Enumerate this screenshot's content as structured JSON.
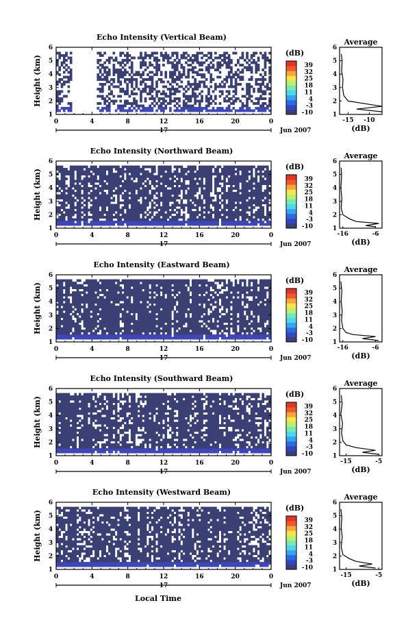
{
  "colors": {
    "background_echo": "#3a3f74",
    "low_echo": "#3e46b8",
    "colorbar": [
      "#3a3f74",
      "#3345c0",
      "#2f6be0",
      "#34a6f0",
      "#4fd6e8",
      "#7ae8b5",
      "#b8f070",
      "#f6e64e",
      "#f7a63b",
      "#ee5a2a",
      "#e0352a"
    ]
  },
  "shared": {
    "xticks": [
      "0",
      "4",
      "8",
      "12",
      "16",
      "20",
      "0"
    ],
    "yticks": [
      "1",
      "2",
      "3",
      "4",
      "5",
      "6"
    ],
    "ylabel": "Height (km)",
    "day_label": "17",
    "date_label": "Jun 2007",
    "x_axis_title": "Local Time",
    "colorbar_unit": "(dB)",
    "colorbar_ticks": [
      "39",
      "32",
      "25",
      "18",
      "11",
      "4",
      "-3",
      "-10"
    ],
    "average_title": "Average",
    "average_xlabel": "(dB)"
  },
  "chart_data": [
    {
      "type": "heatmap",
      "title": "Echo Intensity (Vertical Beam)",
      "xlabel": "Local Time",
      "ylabel": "Height (km)",
      "xlim": [
        0,
        24
      ],
      "ylim": [
        1,
        6
      ],
      "zlim": [
        -10,
        39
      ],
      "coverage": {
        "top_km": 5.5,
        "density": 0.45,
        "blank_hours": [
          [
            1.8,
            4.5
          ]
        ]
      },
      "average_profile": {
        "xticks": [
          "-15",
          "-10"
        ],
        "xlim": [
          -17,
          -7
        ],
        "height_km": [
          1.2,
          1.4,
          1.6,
          1.8,
          2.0,
          2.4,
          3.0,
          3.6,
          4.2,
          5.0,
          5.5
        ],
        "value_db": [
          -7,
          -13,
          -7,
          -11,
          -15,
          -16,
          -16.3,
          -16.2,
          -16.5,
          -16.4,
          -16.6
        ]
      }
    },
    {
      "type": "heatmap",
      "title": "Echo Intensity (Northward Beam)",
      "xlabel": "Local Time",
      "ylabel": "Height (km)",
      "xlim": [
        0,
        24
      ],
      "ylim": [
        1,
        6
      ],
      "zlim": [
        -10,
        39
      ],
      "coverage": {
        "top_km": 5.5,
        "density": 0.78,
        "blank_hours": []
      },
      "average_profile": {
        "xticks": [
          "-16",
          "-6"
        ],
        "xlim": [
          -17,
          -4
        ],
        "height_km": [
          1.1,
          1.2,
          1.35,
          1.5,
          1.7,
          2.0,
          2.5,
          3.2,
          4.0,
          4.8,
          5.5
        ],
        "value_db": [
          -6,
          -9,
          -5,
          -12,
          -14,
          -16,
          -16.5,
          -16.3,
          -16.6,
          -16.4,
          -16.5
        ]
      }
    },
    {
      "type": "heatmap",
      "title": "Echo Intensity (Eastward Beam)",
      "xlabel": "Local Time",
      "ylabel": "Height (km)",
      "xlim": [
        0,
        24
      ],
      "ylim": [
        1,
        6
      ],
      "zlim": [
        -10,
        39
      ],
      "coverage": {
        "top_km": 5.5,
        "density": 0.86,
        "blank_hours": []
      },
      "average_profile": {
        "xticks": [
          "-16",
          "-6"
        ],
        "xlim": [
          -17,
          -4
        ],
        "height_km": [
          1.1,
          1.25,
          1.4,
          1.55,
          1.7,
          2.0,
          2.6,
          3.3,
          4.0,
          4.8,
          5.5
        ],
        "value_db": [
          -5,
          -10,
          -6,
          -13,
          -15,
          -16,
          -16.4,
          -16.2,
          -16.5,
          -16.3,
          -16.6
        ]
      }
    },
    {
      "type": "heatmap",
      "title": "Echo Intensity (Southward Beam)",
      "xlabel": "Local Time",
      "ylabel": "Height (km)",
      "xlim": [
        0,
        24
      ],
      "ylim": [
        1,
        6
      ],
      "zlim": [
        -10,
        39
      ],
      "coverage": {
        "top_km": 5.5,
        "density": 0.84,
        "blank_hours": []
      },
      "average_profile": {
        "xticks": [
          "-15",
          "-5"
        ],
        "xlim": [
          -17,
          -4
        ],
        "height_km": [
          1.1,
          1.25,
          1.4,
          1.6,
          1.8,
          2.1,
          2.7,
          3.4,
          4.1,
          4.9,
          5.5
        ],
        "value_db": [
          -5,
          -10,
          -6,
          -12,
          -15,
          -16,
          -16.4,
          -16.1,
          -16.6,
          -16.2,
          -16.5
        ]
      }
    },
    {
      "type": "heatmap",
      "title": "Echo Intensity (Westward Beam)",
      "xlabel": "Local Time",
      "ylabel": "Height (km)",
      "xlim": [
        0,
        24
      ],
      "ylim": [
        1,
        6
      ],
      "zlim": [
        -10,
        39
      ],
      "coverage": {
        "top_km": 5.5,
        "density": 0.8,
        "blank_hours": []
      },
      "average_profile": {
        "xticks": [
          "-15",
          "-5"
        ],
        "xlim": [
          -17,
          -4
        ],
        "height_km": [
          1.1,
          1.25,
          1.4,
          1.6,
          1.8,
          2.1,
          2.7,
          3.4,
          4.1,
          4.9,
          5.5
        ],
        "value_db": [
          -6,
          -11,
          -7,
          -12,
          -14,
          -16,
          -16.5,
          -16.2,
          -16.5,
          -16.3,
          -16.6
        ]
      }
    }
  ]
}
